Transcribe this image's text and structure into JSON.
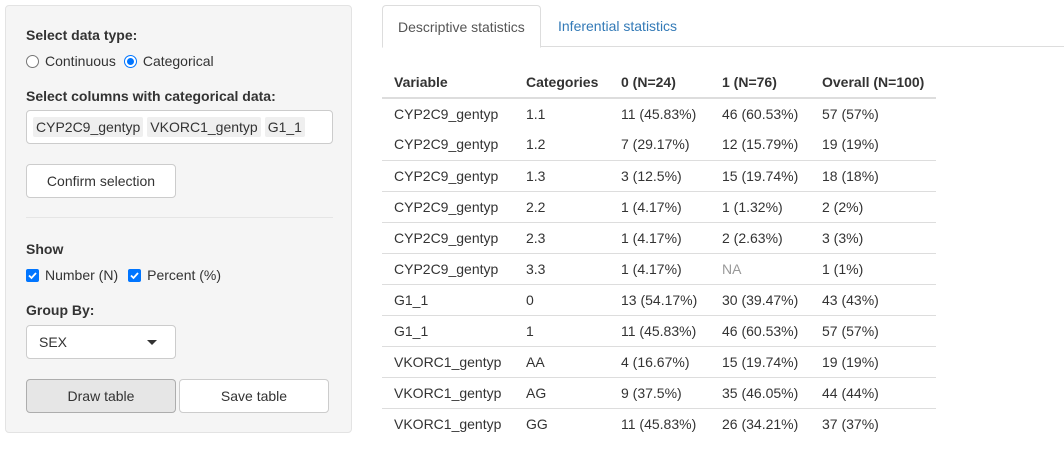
{
  "sidebar": {
    "data_type_label": "Select data type:",
    "data_type_options": [
      {
        "label": "Continuous",
        "selected": false
      },
      {
        "label": "Categorical",
        "selected": true
      }
    ],
    "columns_label": "Select columns with categorical data:",
    "selected_columns": [
      "CYP2C9_gentyp",
      "VKORC1_gentyp",
      "G1_1"
    ],
    "confirm_button": "Confirm selection",
    "show_label": "Show",
    "show_options": [
      {
        "label": "Number (N)",
        "checked": true
      },
      {
        "label": "Percent (%)",
        "checked": true
      }
    ],
    "group_by_label": "Group By:",
    "group_by_value": "SEX",
    "draw_button": "Draw table",
    "save_button": "Save table"
  },
  "tabs": [
    {
      "label": "Descriptive statistics",
      "active": true
    },
    {
      "label": "Inferential statistics",
      "active": false
    }
  ],
  "table": {
    "headers": [
      "Variable",
      "Categories",
      "0 (N=24)",
      "1 (N=76)",
      "Overall (N=100)"
    ],
    "rows": [
      [
        "CYP2C9_gentyp",
        "1.1",
        "11 (45.83%)",
        "46 (60.53%)",
        "57 (57%)"
      ],
      [
        "CYP2C9_gentyp",
        "1.2",
        "7 (29.17%)",
        "12 (15.79%)",
        "19 (19%)"
      ],
      [
        "CYP2C9_gentyp",
        "1.3",
        "3 (12.5%)",
        "15 (19.74%)",
        "18 (18%)"
      ],
      [
        "CYP2C9_gentyp",
        "2.2",
        "1 (4.17%)",
        "1 (1.32%)",
        "2 (2%)"
      ],
      [
        "CYP2C9_gentyp",
        "2.3",
        "1 (4.17%)",
        "2 (2.63%)",
        "3 (3%)"
      ],
      [
        "CYP2C9_gentyp",
        "3.3",
        "1 (4.17%)",
        "NA",
        "1 (1%)"
      ],
      [
        "G1_1",
        "0",
        "13 (54.17%)",
        "30 (39.47%)",
        "43 (43%)"
      ],
      [
        "G1_1",
        "1",
        "11 (45.83%)",
        "46 (60.53%)",
        "57 (57%)"
      ],
      [
        "VKORC1_gentyp",
        "AA",
        "4 (16.67%)",
        "15 (19.74%)",
        "19 (19%)"
      ],
      [
        "VKORC1_gentyp",
        "AG",
        "9 (37.5%)",
        "35 (46.05%)",
        "44 (44%)"
      ],
      [
        "VKORC1_gentyp",
        "GG",
        "11 (45.83%)",
        "26 (34.21%)",
        "37 (37%)"
      ]
    ]
  },
  "colors": {
    "accent": "#0075ff",
    "link": "#337ab7",
    "na_text": "#999999",
    "sidebar_bg": "#f5f5f5"
  }
}
